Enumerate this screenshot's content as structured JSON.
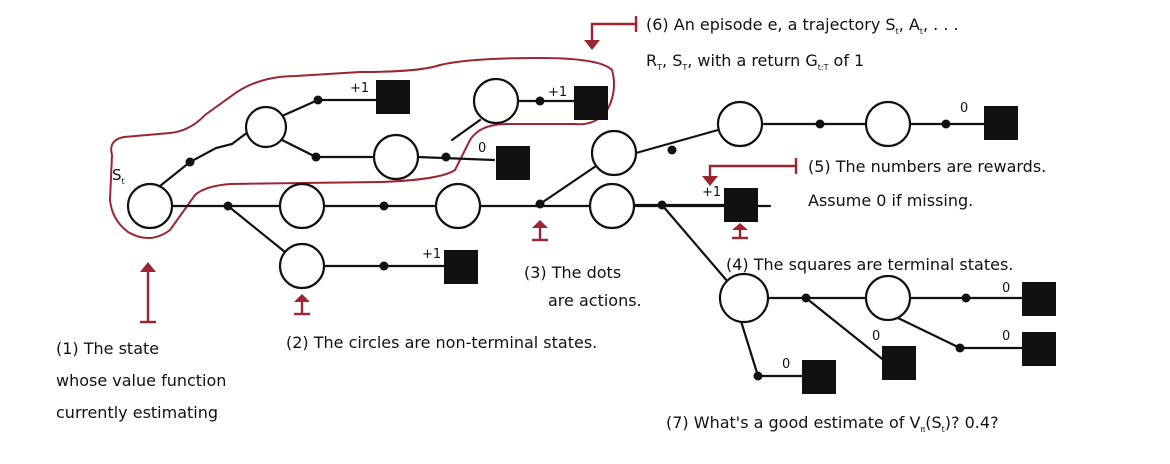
{
  "start_state_label": "S",
  "start_state_sub": "t",
  "rewards": {
    "r1": "+1",
    "r2": "+1",
    "r3": "0",
    "r4": "+1",
    "r5": "0",
    "r6": "+1",
    "r7": "0",
    "r8": "0",
    "r9": "0",
    "r10": "0"
  },
  "notes": {
    "n1_line1": "(1) The state",
    "n1_line2": "whose value function",
    "n1_line3": "currently estimating",
    "n2": "(2) The circles are non-terminal states.",
    "n3_line1": "(3) The dots",
    "n3_line2": "are actions.",
    "n4": "(4) The squares are terminal states.",
    "n5_line1": "(5) The numbers are rewards.",
    "n5_line2": "Assume 0 if missing.",
    "n6_line1_a": "(6) An episode e, a trajectory S",
    "n6_line1_sub1": "t",
    "n6_line1_b": ", A",
    "n6_line1_sub2": "t",
    "n6_line1_c": ", . . .",
    "n6_line2_a": "R",
    "n6_line2_sub1": "T",
    "n6_line2_b": ", S",
    "n6_line2_sub2": "T",
    "n6_line2_c": ", with a return G",
    "n6_line2_sub3": "t:T",
    "n6_line2_d": " of 1",
    "n7_a": "(7) What's a good estimate of V",
    "n7_sub1": "π",
    "n7_b": "(S",
    "n7_sub2": "t",
    "n7_c": ")? 0.4?"
  }
}
